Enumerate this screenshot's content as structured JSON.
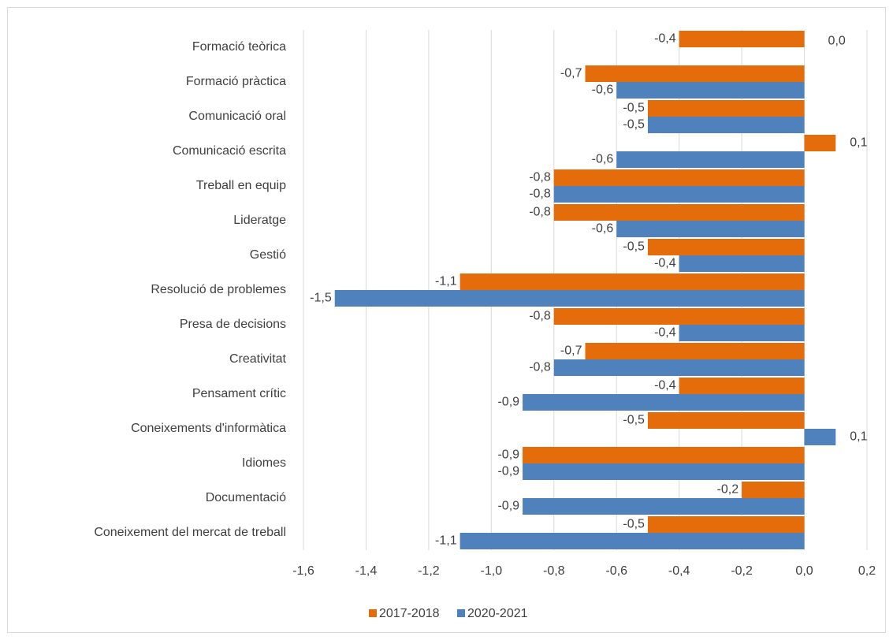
{
  "chart_data": {
    "type": "hbar",
    "categories": [
      "Formació teòrica",
      "Formació pràctica",
      "Comunicació oral",
      "Comunicació escrita",
      "Treball en equip",
      "Lideratge",
      "Gestió",
      "Resolució de problemes",
      "Presa de decisions",
      "Creativitat",
      "Pensament crític",
      "Coneixements d'informàtica",
      "Idiomes",
      "Documentació",
      "Coneixement del mercat de treball"
    ],
    "series": [
      {
        "name": "2017-2018",
        "color": "#e46c0a",
        "values": [
          -0.4,
          -0.7,
          -0.5,
          0.1,
          -0.8,
          -0.8,
          -0.5,
          -1.1,
          -0.8,
          -0.7,
          -0.4,
          -0.5,
          -0.9,
          -0.2,
          -0.5
        ],
        "value_labels": [
          "-0,4",
          "-0,7",
          "-0,5",
          "0,1",
          "-0,8",
          "-0,8",
          "-0,5",
          "-1,1",
          "-0,8",
          "-0,7",
          "-0,4",
          "-0,5",
          "-0,9",
          "-0,2",
          "-0,5"
        ]
      },
      {
        "name": "2020-2021",
        "color": "#4f81bd",
        "values": [
          0.0,
          -0.6,
          -0.5,
          -0.6,
          -0.8,
          -0.6,
          -0.4,
          -1.5,
          -0.4,
          -0.8,
          -0.9,
          0.1,
          -0.9,
          -0.9,
          -1.1
        ],
        "value_labels": [
          "0,0",
          "-0,6",
          "-0,5",
          "-0,6",
          "-0,8",
          "-0,6",
          "-0,4",
          "-1,5",
          "-0,4",
          "-0,8",
          "-0,9",
          "0,1",
          "-0,9",
          "-0,9",
          "-1,1"
        ]
      }
    ],
    "xlim": [
      -1.6,
      0.2
    ],
    "xticks": [
      {
        "value": -1.6,
        "label": "-1,6"
      },
      {
        "value": -1.4,
        "label": "-1,4"
      },
      {
        "value": -1.2,
        "label": "-1,2"
      },
      {
        "value": -1.0,
        "label": "-1,0"
      },
      {
        "value": -0.8,
        "label": "-0,8"
      },
      {
        "value": -0.6,
        "label": "-0,6"
      },
      {
        "value": -0.4,
        "label": "-0,4"
      },
      {
        "value": -0.2,
        "label": "-0,2"
      },
      {
        "value": 0,
        "label": "0,0"
      },
      {
        "value": 0.2,
        "label": "0,2"
      }
    ],
    "grid": true,
    "legend": "bottom"
  }
}
